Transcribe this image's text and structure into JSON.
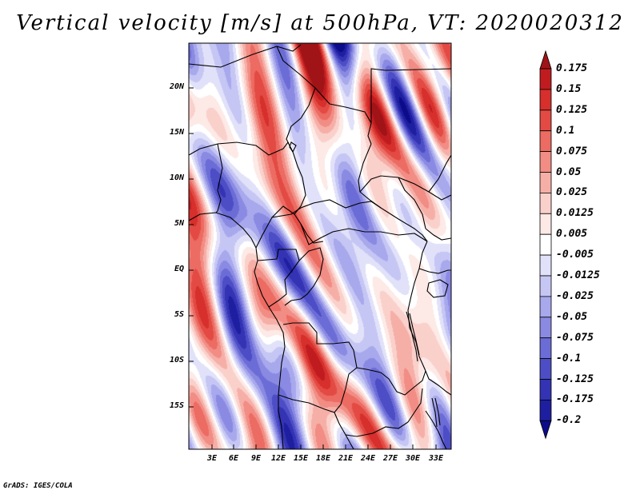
{
  "title": "Vertical velocity [m/s] at 500hPa, VT: 2020020312",
  "footer": "GrADS: IGES/COLA",
  "map": {
    "lat_labels": [
      "20N",
      "15N",
      "10N",
      "5N",
      "EQ",
      "5S",
      "10S",
      "15S"
    ],
    "lon_labels": [
      "3E",
      "6E",
      "9E",
      "12E",
      "15E",
      "18E",
      "21E",
      "24E",
      "27E",
      "30E",
      "33E"
    ]
  },
  "colorbar": {
    "labels": [
      "0.175",
      "0.15",
      "0.125",
      "0.1",
      "0.075",
      "0.05",
      "0.025",
      "0.0125",
      "0.005",
      "-0.005",
      "-0.0125",
      "-0.025",
      "-0.05",
      "-0.075",
      "-0.1",
      "-0.125",
      "-0.175",
      "-0.2"
    ],
    "colors": [
      "#a01418",
      "#c01c20",
      "#d62f2c",
      "#e24a43",
      "#ec6b62",
      "#f18d84",
      "#f6afa7",
      "#fad0cb",
      "#fde9e6",
      "#ffffff",
      "#e1e1fa",
      "#c6c6f4",
      "#a8a8ed",
      "#8a8ae3",
      "#6c6cd6",
      "#4d4dc6",
      "#3333b4",
      "#1e1ea0",
      "#0c0c8a"
    ],
    "top_arrow_color": "#a01418",
    "bottom_arrow_color": "#0c0c8a"
  }
}
